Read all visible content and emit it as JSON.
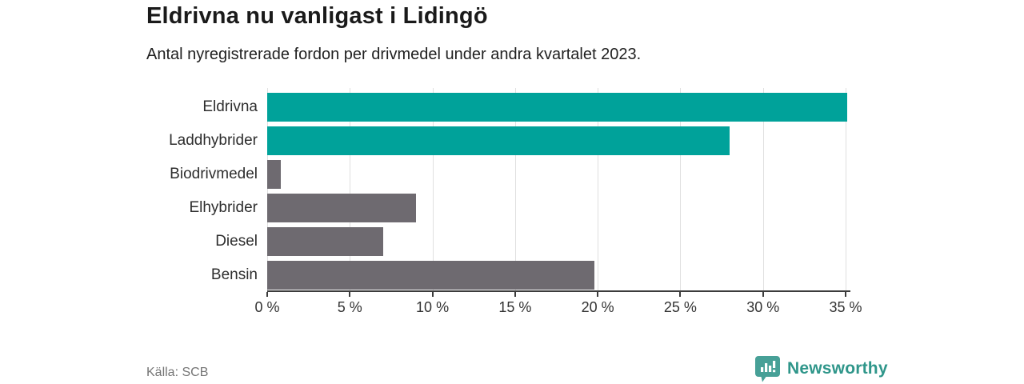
{
  "title": "Eldrivna nu vanligast i Lidingö",
  "subtitle": "Antal nyregistrerade fordon per drivmedel under andra kvartalet 2023.",
  "source": "Källa: SCB",
  "branding": {
    "name": "Newsworthy",
    "icon": "newsworthy-chart-pin-icon",
    "icon_color": "#47a097",
    "text_color": "#2f968a"
  },
  "colors": {
    "highlight_bar": "#00a29a",
    "default_bar": "#6e6a70",
    "gridline": "#e0e0e0",
    "axis": "#3c3c3c"
  },
  "chart_data": {
    "type": "bar",
    "orientation": "horizontal",
    "title": "Eldrivna nu vanligast i Lidingö",
    "subtitle": "Antal nyregistrerade fordon per drivmedel under andra kvartalet 2023.",
    "xlabel": "",
    "ylabel": "",
    "unit": "percent",
    "xlim": [
      0,
      35
    ],
    "grid": true,
    "categories": [
      "Eldrivna",
      "Laddhybrider",
      "Biodrivmedel",
      "Elhybrider",
      "Diesel",
      "Bensin"
    ],
    "values": [
      35.1,
      28,
      0.8,
      9,
      7,
      19.8
    ],
    "bar_colors": [
      "#00a29a",
      "#00a29a",
      "#6e6a70",
      "#6e6a70",
      "#6e6a70",
      "#6e6a70"
    ],
    "x_tick_values": [
      0,
      5,
      10,
      15,
      20,
      25,
      30,
      35
    ],
    "x_tick_labels": [
      "0 %",
      "5 %",
      "10 %",
      "15 %",
      "20 %",
      "25 %",
      "30 %",
      "35 %"
    ],
    "source": "Källa: SCB"
  }
}
